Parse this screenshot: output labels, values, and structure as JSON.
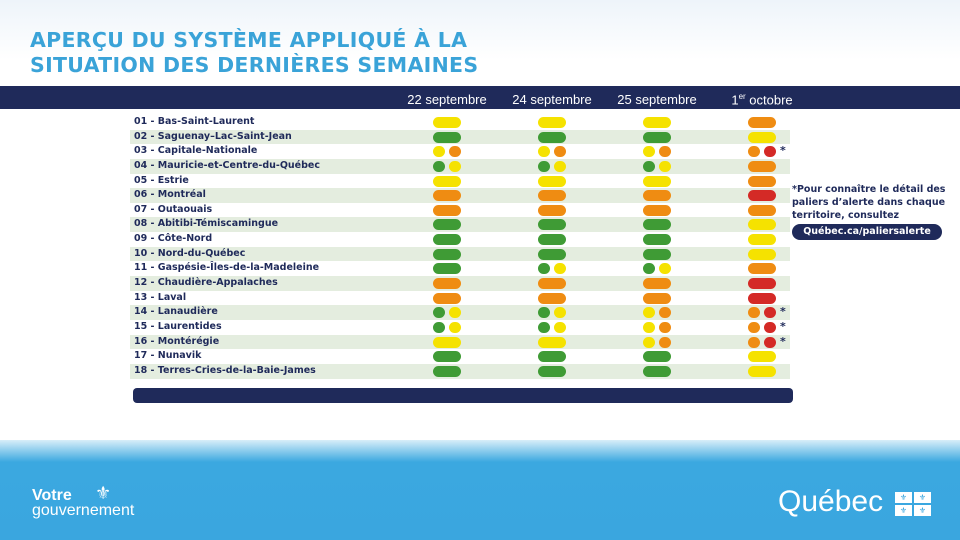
{
  "title": {
    "line1": "APERÇU DU SYSTÈME APPLIQUÉ À LA",
    "line2": "SITUATION DES DERNIÈRES SEMAINES"
  },
  "colors": {
    "G": "#3f9b35",
    "Y": "#f5e200",
    "O": "#ef8c12",
    "R": "#d42a26",
    "navy": "#1f2a5a",
    "title": "#3aa3d8"
  },
  "legend": {
    "G": "vert",
    "Y": "jaune",
    "O": "orange",
    "R": "rouge"
  },
  "dates": [
    "22 septembre",
    "24 septembre",
    "25 septembre",
    "1er octobre"
  ],
  "date4": {
    "day": "1",
    "sup": "er",
    "month": " octobre"
  },
  "regions": [
    {
      "label": "01 - Bas-Saint-Laurent",
      "status": [
        "Y",
        "Y",
        "Y",
        "O"
      ]
    },
    {
      "label": "02 - Saguenay–Lac-Saint-Jean",
      "status": [
        "G",
        "G",
        "G",
        "Y"
      ]
    },
    {
      "label": "03 - Capitale-Nationale",
      "status": [
        "Y/O",
        "Y/O",
        "Y/O",
        "O/R"
      ],
      "star": "*"
    },
    {
      "label": "04 - Mauricie-et-Centre-du-Québec",
      "status": [
        "G/Y",
        "G/Y",
        "G/Y",
        "O"
      ]
    },
    {
      "label": "05 - Estrie",
      "status": [
        "Y",
        "Y",
        "Y",
        "O"
      ]
    },
    {
      "label": "06 - Montréal",
      "status": [
        "O",
        "O",
        "O",
        "R"
      ]
    },
    {
      "label": "07 - Outaouais",
      "status": [
        "O",
        "O",
        "O",
        "O"
      ]
    },
    {
      "label": "08 - Abitibi-Témiscamingue",
      "status": [
        "G",
        "G",
        "G",
        "Y"
      ]
    },
    {
      "label": "09 - Côte-Nord",
      "status": [
        "G",
        "G",
        "G",
        "Y"
      ]
    },
    {
      "label": "10 - Nord-du-Québec",
      "status": [
        "G",
        "G",
        "G",
        "Y"
      ]
    },
    {
      "label": "11 - Gaspésie-Îles-de-la-Madeleine",
      "status": [
        "G",
        "G/Y",
        "G/Y",
        "O"
      ]
    },
    {
      "label": "12 - Chaudière-Appalaches",
      "status": [
        "O",
        "O",
        "O",
        "R"
      ]
    },
    {
      "label": "13 - Laval",
      "status": [
        "O",
        "O",
        "O",
        "R"
      ]
    },
    {
      "label": "14 - Lanaudière",
      "status": [
        "G/Y",
        "G/Y",
        "Y/O",
        "O/R"
      ],
      "star": "*"
    },
    {
      "label": "15 - Laurentides",
      "status": [
        "G/Y",
        "G/Y",
        "Y/O",
        "O/R"
      ],
      "star": "*"
    },
    {
      "label": "16 - Montérégie",
      "status": [
        "Y",
        "Y",
        "Y/O",
        "O/R"
      ],
      "star": "*"
    },
    {
      "label": "17 - Nunavik",
      "status": [
        "G",
        "G",
        "G",
        "Y"
      ]
    },
    {
      "label": "18 - Terres-Cries-de-la-Baie-James",
      "status": [
        "G",
        "G",
        "G",
        "Y"
      ]
    }
  ],
  "note": {
    "text": "*Pour connaître le détail des paliers d’alerte dans chaque territoire, consultez",
    "link": "Québec.ca/paliersalerte"
  },
  "footer": {
    "left_line1": "Votre",
    "left_line2": "gouvernement",
    "right": "Québec"
  }
}
